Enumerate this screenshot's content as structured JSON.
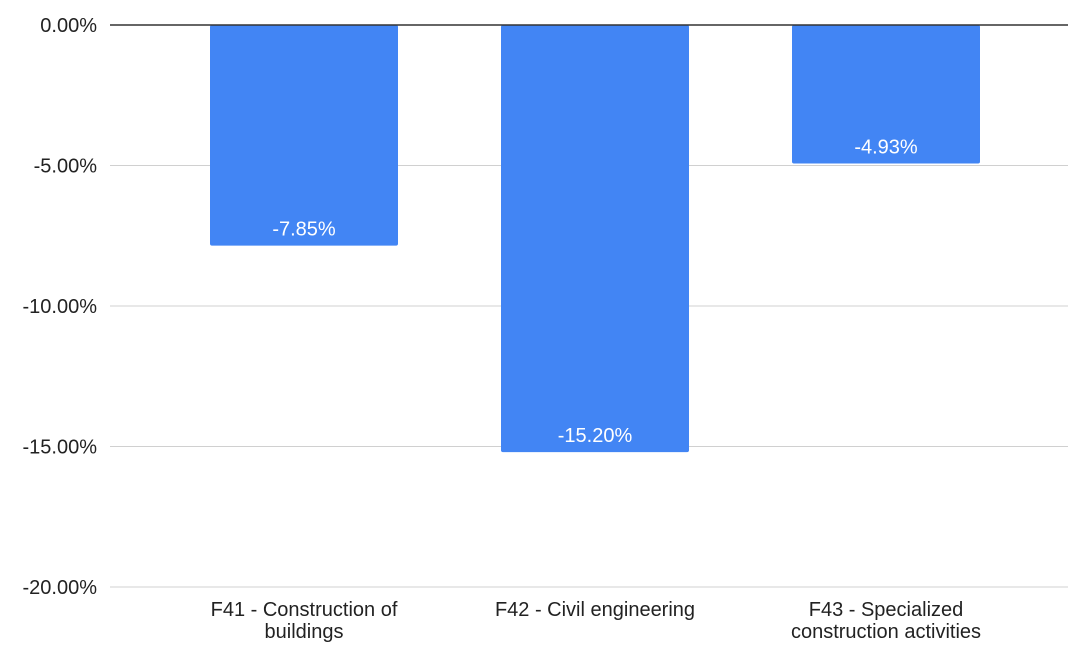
{
  "chart_data": {
    "type": "bar",
    "title": "",
    "xlabel": "",
    "ylabel": "",
    "categories": [
      [
        "F41 - Construction of",
        "buildings"
      ],
      [
        "F42 - Civil engineering"
      ],
      [
        "F43 - Specialized",
        "construction activities"
      ]
    ],
    "values": [
      -7.85,
      -15.2,
      -4.93
    ],
    "data_labels": [
      "-7.85%",
      "-15.20%",
      "-4.93%"
    ],
    "ylim": [
      -20,
      0
    ],
    "yticks": [
      0,
      -5,
      -10,
      -15,
      -20
    ],
    "ytick_labels": [
      "0.00%",
      "-5.00%",
      "-10.00%",
      "-15.00%",
      "-20.00%"
    ],
    "grid": true,
    "legend": "none",
    "colors": {
      "bar": "#4285f4",
      "grid": "#d0d0d0",
      "baseline": "#333333",
      "label_inside": "#ffffff",
      "axis_text": "#222222"
    }
  }
}
